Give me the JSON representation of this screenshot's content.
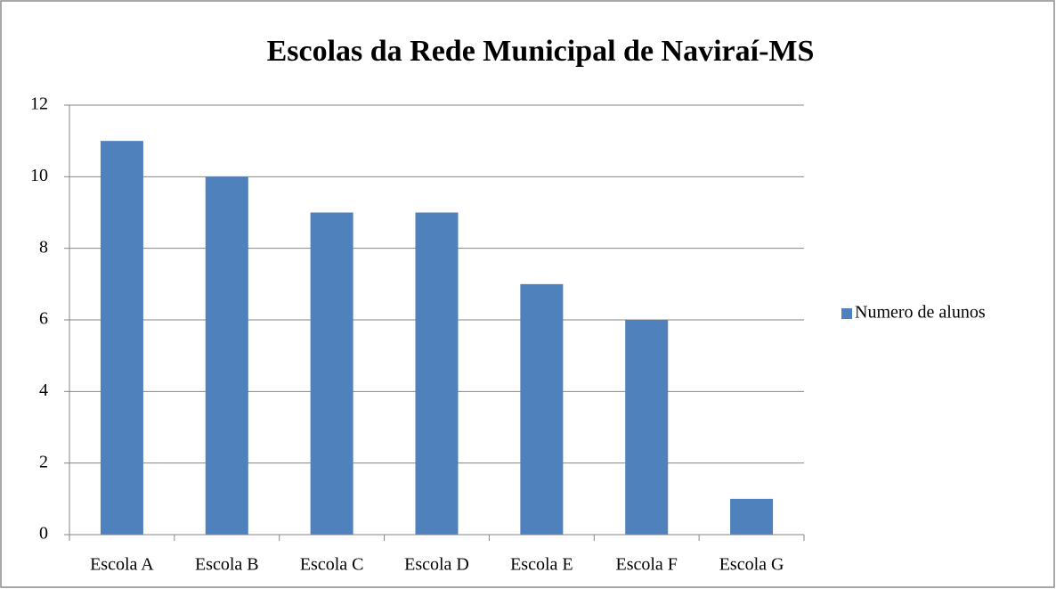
{
  "chart_data": {
    "type": "bar",
    "title": "Escolas da Rede Municipal de Naviraí-MS",
    "categories": [
      "Escola A",
      "Escola B",
      "Escola C",
      "Escola D",
      "Escola E",
      "Escola F",
      "Escola G"
    ],
    "series": [
      {
        "name": "Numero de alunos",
        "color": "#4f81bd",
        "values": [
          11,
          10,
          9,
          9,
          7,
          6,
          1
        ]
      }
    ],
    "ylim": [
      0,
      12
    ],
    "yticks": [
      0,
      2,
      4,
      6,
      8,
      10,
      12
    ],
    "grid": true,
    "legend": "right"
  }
}
